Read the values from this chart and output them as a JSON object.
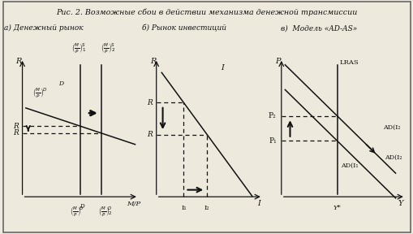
{
  "title_line1": "Рис. 2. Возможные сбои в действии механизма денежной трансмиссии",
  "title_line2a": "а) Денежный рынок",
  "title_line2b": "б) Рынок инвестиций",
  "title_line2c": "в)  Модель «AD-AS»",
  "bg_color": "#ede9dc",
  "line_color": "#111111"
}
